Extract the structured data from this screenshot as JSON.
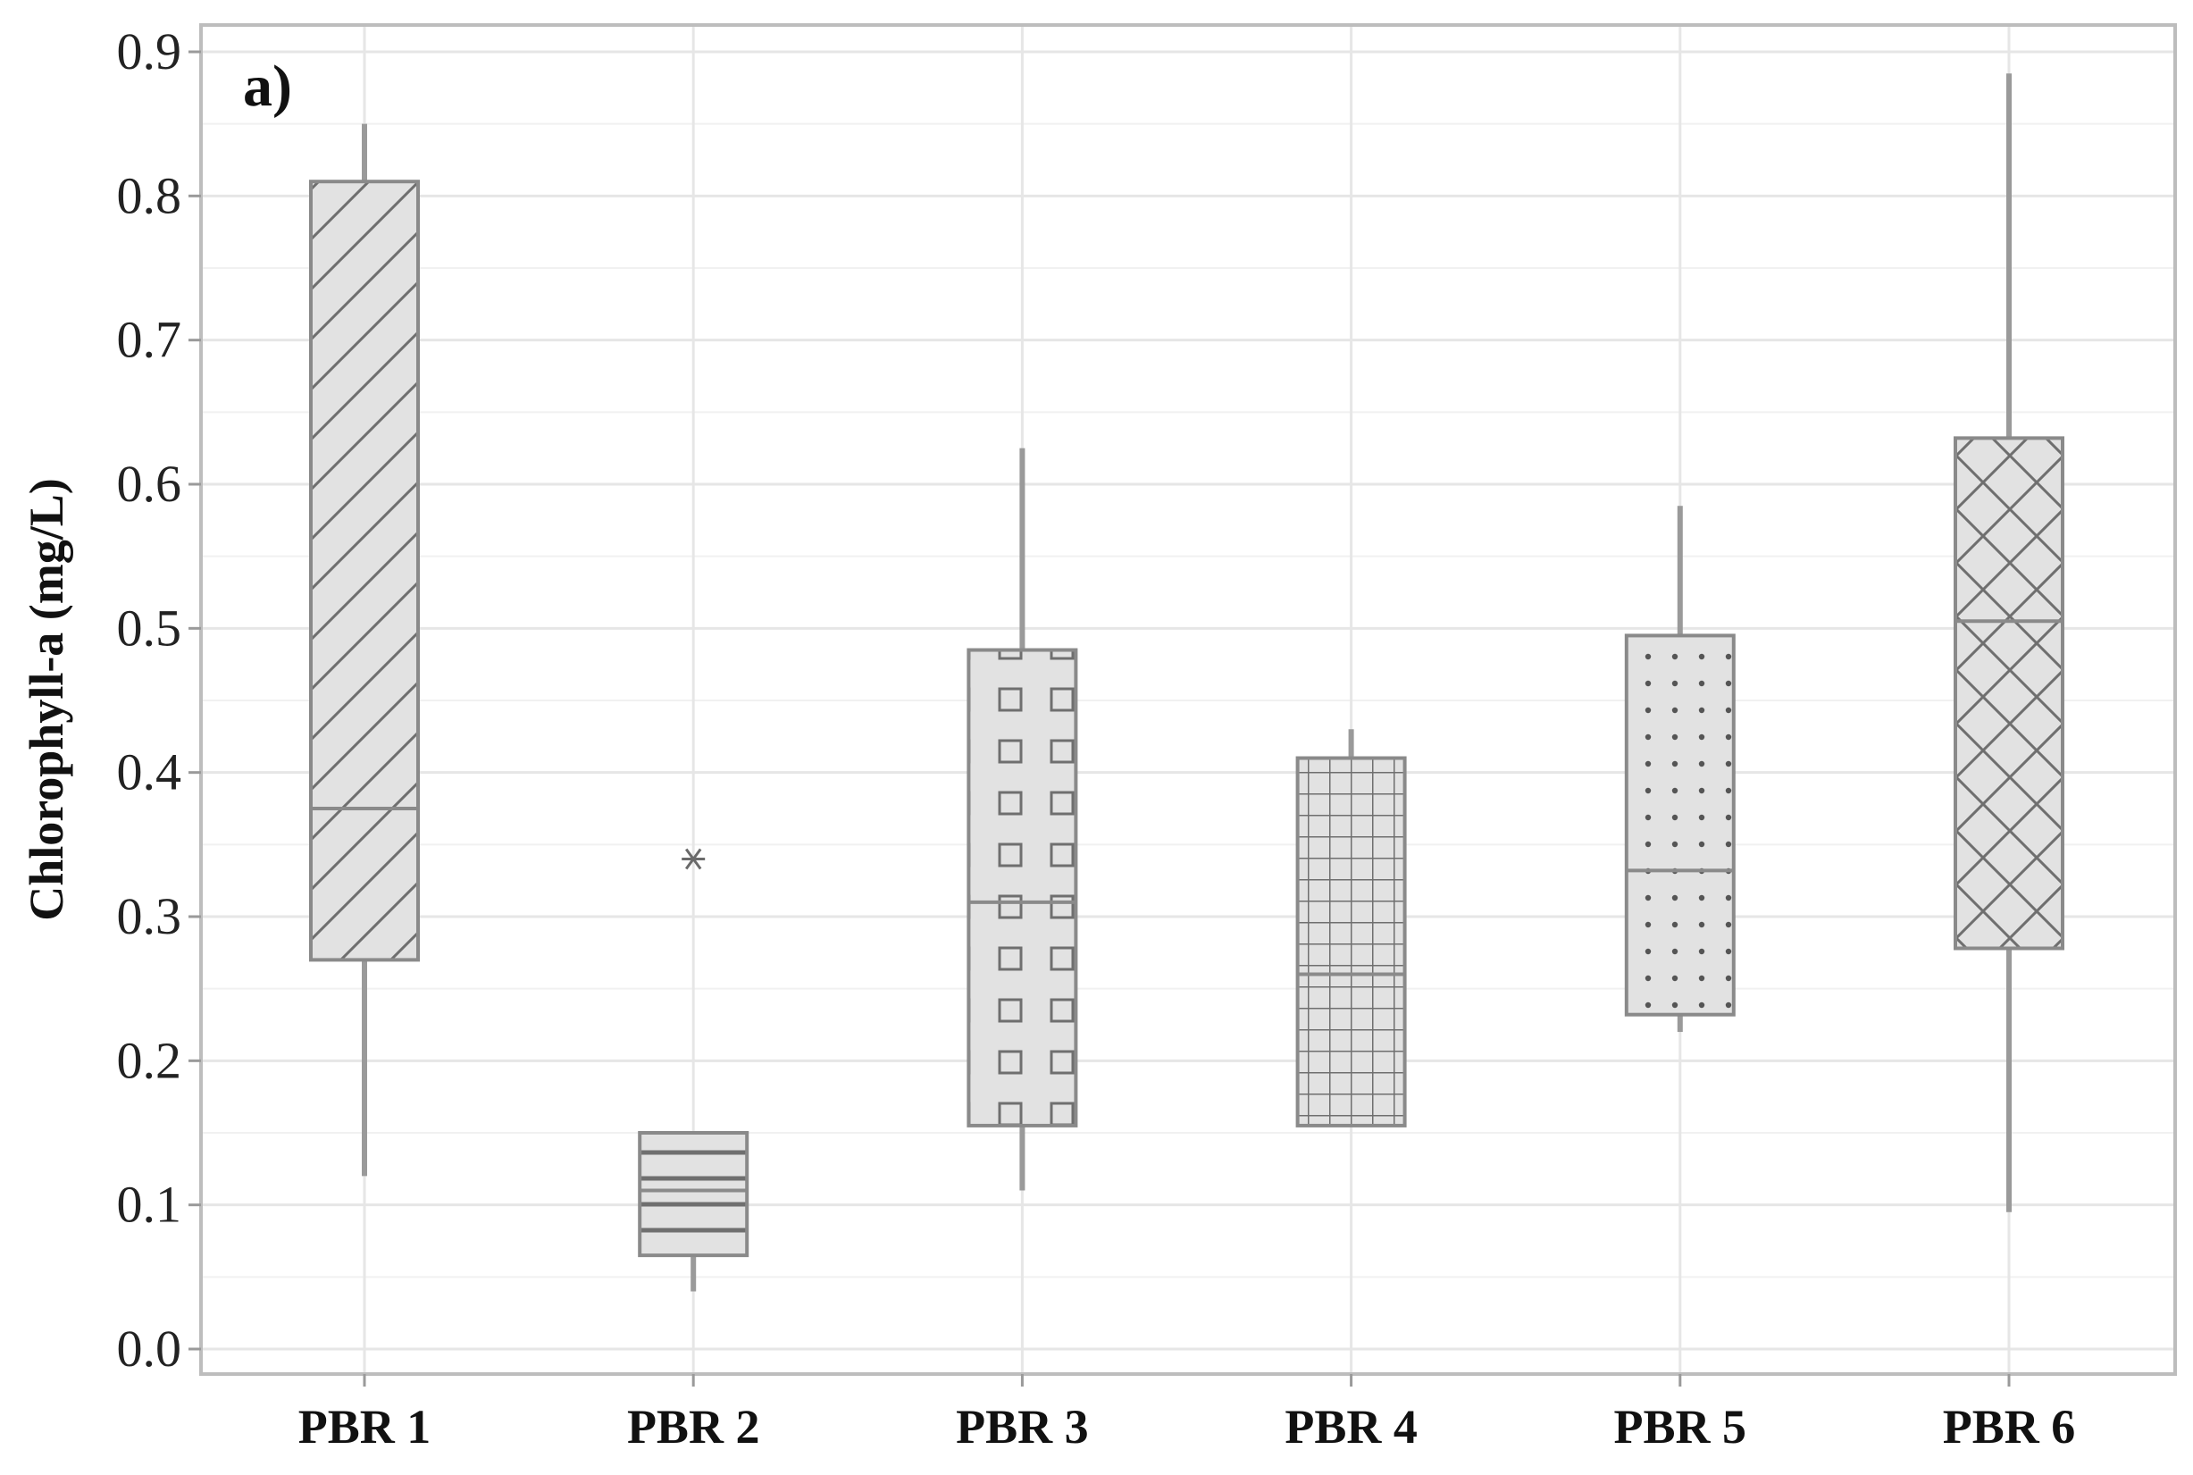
{
  "chart_data": {
    "type": "box",
    "panel_label": "a)",
    "title": "",
    "xlabel": "",
    "ylabel": "Chlorophyll-a (mg/L)",
    "ylim": [
      0,
      0.9
    ],
    "yticks": [
      {
        "value": 0.0,
        "label": "0.0"
      },
      {
        "value": 0.1,
        "label": "0.1"
      },
      {
        "value": 0.2,
        "label": "0.2"
      },
      {
        "value": 0.3,
        "label": "0.3"
      },
      {
        "value": 0.4,
        "label": "0.4"
      },
      {
        "value": 0.5,
        "label": "0.5"
      },
      {
        "value": 0.6,
        "label": "0.6"
      },
      {
        "value": 0.7,
        "label": "0.7"
      },
      {
        "value": 0.8,
        "label": "0.8"
      },
      {
        "value": 0.9,
        "label": "0.9"
      }
    ],
    "grid": true,
    "categories": [
      "PBR 1",
      "PBR 2",
      "PBR 3",
      "PBR 4",
      "PBR 5",
      "PBR 6"
    ],
    "boxes": [
      {
        "category": "PBR 1",
        "whisker_low": 0.12,
        "q1": 0.27,
        "median": 0.375,
        "q3": 0.81,
        "whisker_high": 0.85,
        "outliers": [],
        "pattern": "diagonal"
      },
      {
        "category": "PBR 2",
        "whisker_low": 0.04,
        "q1": 0.065,
        "median": 0.11,
        "q3": 0.15,
        "whisker_high": 0.15,
        "outliers": [
          0.34
        ],
        "pattern": "horizontal"
      },
      {
        "category": "PBR 3",
        "whisker_low": 0.11,
        "q1": 0.155,
        "median": 0.31,
        "q3": 0.485,
        "whisker_high": 0.625,
        "outliers": [],
        "pattern": "squares"
      },
      {
        "category": "PBR 4",
        "whisker_low": 0.155,
        "q1": 0.155,
        "median": 0.26,
        "q3": 0.41,
        "whisker_high": 0.43,
        "outliers": [],
        "pattern": "grid"
      },
      {
        "category": "PBR 5",
        "whisker_low": 0.22,
        "q1": 0.232,
        "median": 0.332,
        "q3": 0.495,
        "whisker_high": 0.585,
        "outliers": [],
        "pattern": "dots"
      },
      {
        "category": "PBR 6",
        "whisker_low": 0.095,
        "q1": 0.278,
        "median": 0.505,
        "q3": 0.632,
        "whisker_high": 0.885,
        "outliers": [],
        "pattern": "crosshatch"
      }
    ],
    "colors": {
      "box_fill": "#e2e2e2",
      "box_stroke": "#8a8a8a",
      "pattern_stroke": "#6f6f6f",
      "whisker": "#9a9a9a",
      "grid": "#e6e6e6",
      "frame": "#bdbdbd"
    }
  }
}
